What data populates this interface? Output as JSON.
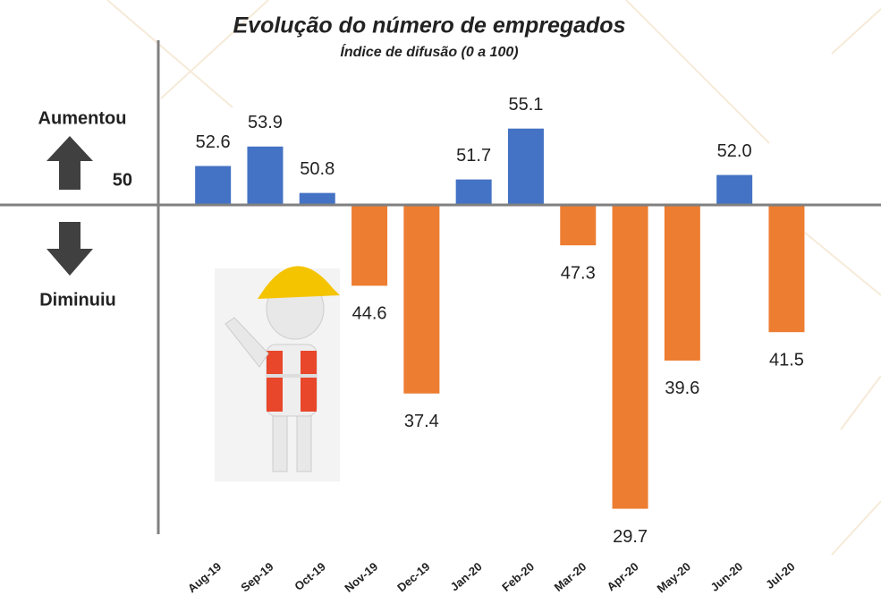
{
  "chart_data": {
    "type": "bar",
    "title": "Evolução do número de empregados",
    "subtitle": "Índice de difusão (0 a 100)",
    "upper_label": "Aumentou",
    "lower_label": "Diminuiu",
    "baseline": 50,
    "categories": [
      "Aug-19",
      "Sep-19",
      "Oct-19",
      "Nov-19",
      "Dec-19",
      "Jan-20",
      "Feb-20",
      "Mar-20",
      "Apr-20",
      "May-20",
      "Jun-20",
      "Jul-20"
    ],
    "values": [
      52.6,
      53.9,
      50.8,
      44.6,
      37.4,
      51.7,
      55.1,
      47.3,
      29.7,
      39.6,
      52.0,
      41.5
    ],
    "value_labels": [
      "52.6",
      "53.9",
      "50.8",
      "44.6",
      "37.4",
      "51.7",
      "55.1",
      "47.3",
      "29.7",
      "39.6",
      "52.0",
      "41.5"
    ],
    "color_above": "#4472c4",
    "color_below": "#ed7d31",
    "ylim": [
      28,
      61
    ]
  }
}
